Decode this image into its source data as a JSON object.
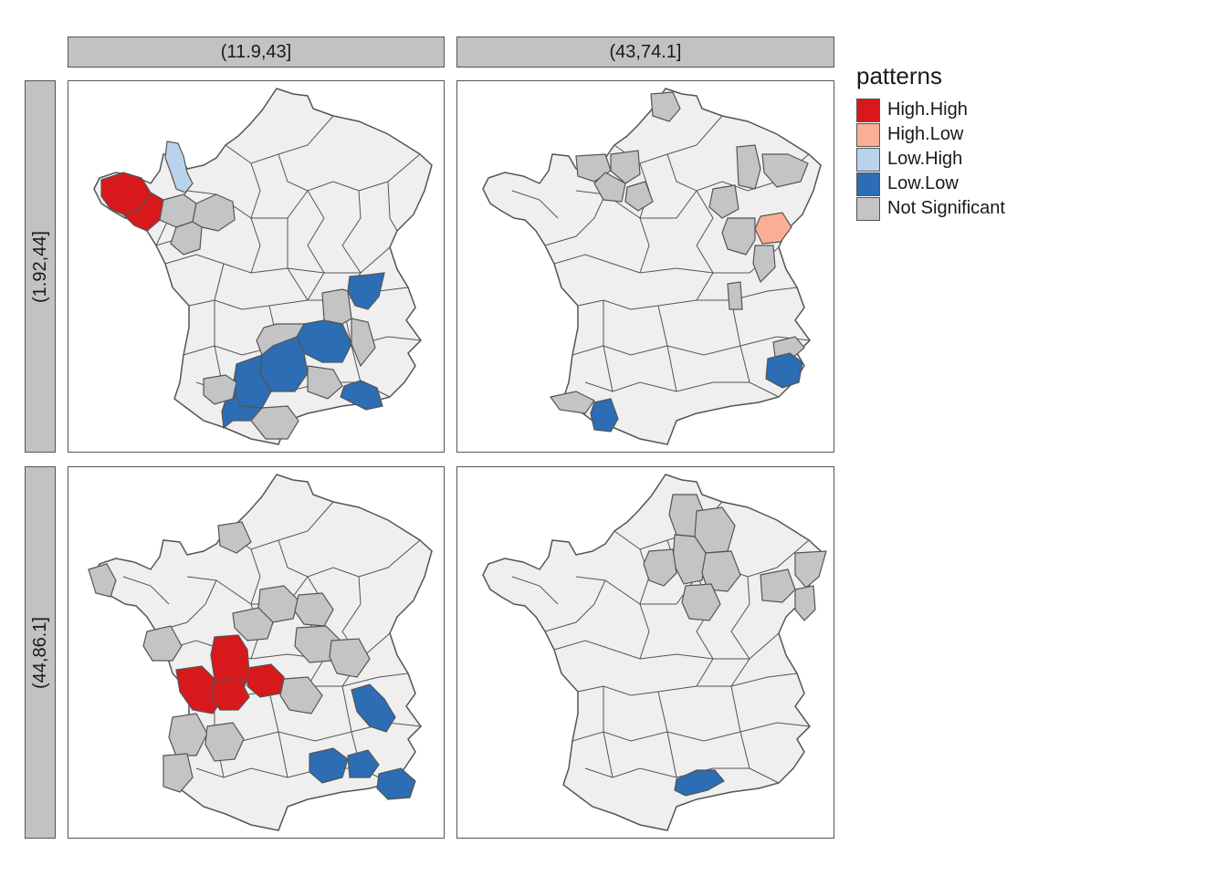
{
  "legend": {
    "title": "patterns",
    "items": [
      {
        "label": "High.High",
        "color": "#d7191c"
      },
      {
        "label": "High.Low",
        "color": "#fbae96"
      },
      {
        "label": "Low.High",
        "color": "#bad3ec"
      },
      {
        "label": "Low.Low",
        "color": "#2c6db3"
      },
      {
        "label": "Not Significant",
        "color": "#c4c4c4"
      }
    ]
  },
  "facets": {
    "columns": [
      "(11.9,43]",
      "(43,74.1]"
    ],
    "rows": [
      "(1.92,44]",
      "(44,86.1]"
    ]
  },
  "map_style": {
    "background": "#f0f0f0",
    "border": "#555555",
    "not_in_class_fill": "#efefef"
  },
  "panels": [
    {
      "row": "(1.92,44]",
      "col": "(11.9,43]",
      "regions": [
        {
          "name": "brittany-west",
          "pattern": "High.High"
        },
        {
          "name": "brittany-east",
          "pattern": "High.High"
        },
        {
          "name": "normandy-north",
          "pattern": "Low.High"
        },
        {
          "name": "mayenne",
          "pattern": "Not Significant"
        },
        {
          "name": "sarthe",
          "pattern": "Not Significant"
        },
        {
          "name": "loire-atlantique",
          "pattern": "Not Significant"
        },
        {
          "name": "rhone-north",
          "pattern": "Low.Low"
        },
        {
          "name": "massif-central-a",
          "pattern": "Low.Low"
        },
        {
          "name": "massif-central-b",
          "pattern": "Low.Low"
        },
        {
          "name": "tarn",
          "pattern": "Low.Low"
        },
        {
          "name": "herault",
          "pattern": "Low.Low"
        },
        {
          "name": "bouches-du-rhone",
          "pattern": "Low.Low"
        },
        {
          "name": "cantal",
          "pattern": "Not Significant"
        },
        {
          "name": "loire",
          "pattern": "Not Significant"
        },
        {
          "name": "ardeche",
          "pattern": "Not Significant"
        },
        {
          "name": "pyrenees-orientales",
          "pattern": "Not Significant"
        },
        {
          "name": "gers",
          "pattern": "Not Significant"
        },
        {
          "name": "var",
          "pattern": "Not Significant"
        }
      ]
    },
    {
      "row": "(1.92,44]",
      "col": "(43,74.1]",
      "regions": [
        {
          "name": "nord",
          "pattern": "Not Significant"
        },
        {
          "name": "seine-maritime",
          "pattern": "Not Significant"
        },
        {
          "name": "eure",
          "pattern": "Not Significant"
        },
        {
          "name": "oise",
          "pattern": "Not Significant"
        },
        {
          "name": "yvelines",
          "pattern": "Not Significant"
        },
        {
          "name": "meuse",
          "pattern": "Not Significant"
        },
        {
          "name": "moselle",
          "pattern": "Not Significant"
        },
        {
          "name": "vosges",
          "pattern": "Not Significant"
        },
        {
          "name": "haute-saone",
          "pattern": "High.Low"
        },
        {
          "name": "doubs",
          "pattern": "Not Significant"
        },
        {
          "name": "jura",
          "pattern": "Not Significant"
        },
        {
          "name": "saone-et-loire",
          "pattern": "Not Significant"
        },
        {
          "name": "hautes-alpes",
          "pattern": "Not Significant"
        },
        {
          "name": "alpes-de-haute-provence",
          "pattern": "Low.Low"
        },
        {
          "name": "pyrenees-atlantiques",
          "pattern": "Not Significant"
        },
        {
          "name": "hautes-pyrenees",
          "pattern": "Low.Low"
        }
      ]
    },
    {
      "row": "(44,86.1]",
      "col": "(11.9,43]",
      "regions": [
        {
          "name": "calvados",
          "pattern": "Not Significant"
        },
        {
          "name": "finistere",
          "pattern": "Not Significant"
        },
        {
          "name": "vienne",
          "pattern": "High.High"
        },
        {
          "name": "deux-sevres",
          "pattern": "High.High"
        },
        {
          "name": "charente",
          "pattern": "High.High"
        },
        {
          "name": "haute-vienne",
          "pattern": "High.High"
        },
        {
          "name": "indre",
          "pattern": "Not Significant"
        },
        {
          "name": "cher",
          "pattern": "Not Significant"
        },
        {
          "name": "allier",
          "pattern": "Not Significant"
        },
        {
          "name": "creuse",
          "pattern": "Not Significant"
        },
        {
          "name": "vendee",
          "pattern": "Not Significant"
        },
        {
          "name": "gironde",
          "pattern": "Not Significant"
        },
        {
          "name": "landes",
          "pattern": "Not Significant"
        },
        {
          "name": "dordogne",
          "pattern": "Not Significant"
        },
        {
          "name": "lot",
          "pattern": "Not Significant"
        },
        {
          "name": "puy-de-dome",
          "pattern": "Not Significant"
        },
        {
          "name": "drome",
          "pattern": "Low.Low"
        },
        {
          "name": "gard",
          "pattern": "Low.Low"
        },
        {
          "name": "vaucluse",
          "pattern": "Low.Low"
        },
        {
          "name": "var",
          "pattern": "Low.Low"
        }
      ]
    },
    {
      "row": "(44,86.1]",
      "col": "(43,74.1]",
      "regions": [
        {
          "name": "aisne",
          "pattern": "Not Significant"
        },
        {
          "name": "marne",
          "pattern": "Not Significant"
        },
        {
          "name": "seine-et-marne",
          "pattern": "Not Significant"
        },
        {
          "name": "aube",
          "pattern": "Not Significant"
        },
        {
          "name": "paris-ring",
          "pattern": "Not Significant"
        },
        {
          "name": "yonne",
          "pattern": "Not Significant"
        },
        {
          "name": "bas-rhin",
          "pattern": "Not Significant"
        },
        {
          "name": "haut-rhin",
          "pattern": "Not Significant"
        },
        {
          "name": "vosges",
          "pattern": "Not Significant"
        },
        {
          "name": "herault",
          "pattern": "Low.Low"
        }
      ]
    }
  ]
}
